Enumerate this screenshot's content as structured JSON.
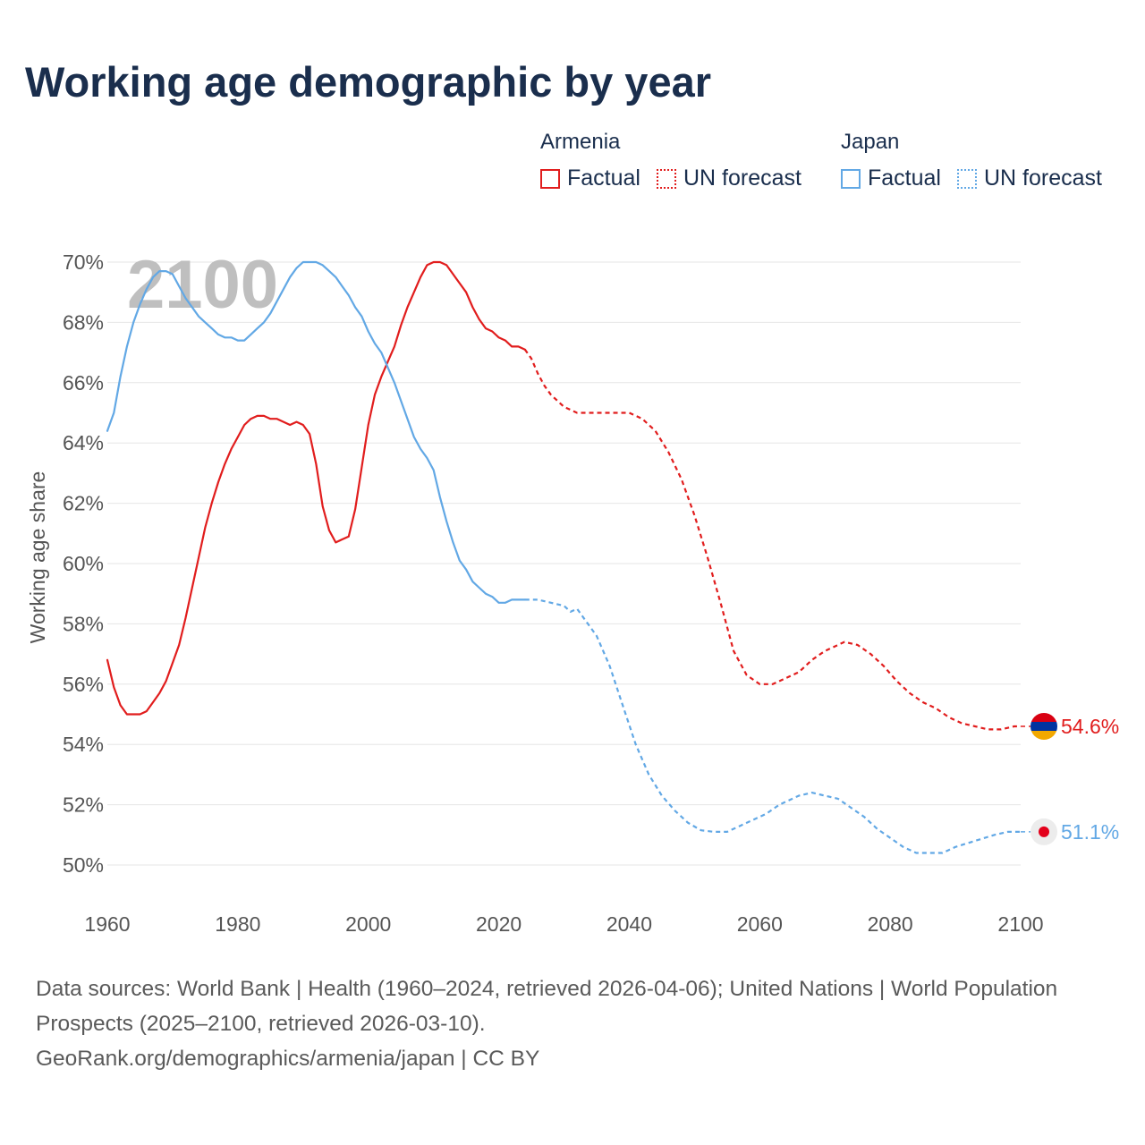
{
  "title": "Working age demographic by year",
  "legend": {
    "groups": [
      {
        "country": "Armenia",
        "factual_label": "Factual",
        "forecast_label": "UN forecast"
      },
      {
        "country": "Japan",
        "factual_label": "Factual",
        "forecast_label": "UN forecast"
      }
    ]
  },
  "footer": {
    "sources": "Data sources: World Bank | Health (1960–2024, retrieved 2026-04-06); United Nations | World Population Prospects (2025–2100, retrieved 2026-03-10).",
    "link": "GeoRank.org/demographics/armenia/japan | CC BY"
  },
  "chart_data": {
    "type": "line",
    "title": "Working age demographic by year",
    "xlabel": "",
    "ylabel": "Working age share",
    "xlim": [
      1960,
      2100
    ],
    "ylim": [
      49,
      70.5
    ],
    "x_ticks": [
      1960,
      1980,
      2000,
      2020,
      2040,
      2060,
      2080,
      2100
    ],
    "y_ticks": [
      50,
      52,
      54,
      56,
      58,
      60,
      62,
      64,
      66,
      68,
      70
    ],
    "y_tick_labels": [
      "50%",
      "52%",
      "54%",
      "56%",
      "58%",
      "60%",
      "62%",
      "64%",
      "66%",
      "68%",
      "70%"
    ],
    "year_watermark": "2100",
    "grid": true,
    "series": [
      {
        "name": "Armenia",
        "color": "#e11d1d",
        "flag": "armenia-flag",
        "end_label": "54.6%",
        "factual": {
          "x": [
            1960,
            1961,
            1962,
            1963,
            1964,
            1965,
            1966,
            1967,
            1968,
            1969,
            1970,
            1971,
            1972,
            1973,
            1974,
            1975,
            1976,
            1977,
            1978,
            1979,
            1980,
            1981,
            1982,
            1983,
            1984,
            1985,
            1986,
            1987,
            1988,
            1989,
            1990,
            1991,
            1992,
            1993,
            1994,
            1995,
            1996,
            1997,
            1998,
            1999,
            2000,
            2001,
            2002,
            2003,
            2004,
            2005,
            2006,
            2007,
            2008,
            2009,
            2010,
            2011,
            2012,
            2013,
            2014,
            2015,
            2016,
            2017,
            2018,
            2019,
            2020,
            2021,
            2022,
            2023,
            2024
          ],
          "y": [
            56.8,
            55.9,
            55.3,
            55.0,
            55.0,
            55.0,
            55.1,
            55.4,
            55.7,
            56.1,
            56.7,
            57.3,
            58.2,
            59.2,
            60.2,
            61.2,
            62.0,
            62.7,
            63.3,
            63.8,
            64.2,
            64.6,
            64.8,
            64.9,
            64.9,
            64.8,
            64.8,
            64.7,
            64.6,
            64.7,
            64.6,
            64.3,
            63.3,
            61.9,
            61.1,
            60.7,
            60.8,
            60.9,
            61.8,
            63.2,
            64.6,
            65.6,
            66.2,
            66.7,
            67.2,
            67.9,
            68.5,
            69.0,
            69.5,
            69.9,
            70.0,
            70.0,
            69.9,
            69.6,
            69.3,
            69.0,
            68.5,
            68.1,
            67.8,
            67.7,
            67.5,
            67.4,
            67.2,
            67.2,
            67.1
          ]
        },
        "forecast": {
          "x": [
            2024,
            2025,
            2026,
            2027,
            2028,
            2030,
            2032,
            2035,
            2038,
            2040,
            2042,
            2044,
            2046,
            2048,
            2050,
            2052,
            2054,
            2056,
            2058,
            2060,
            2062,
            2064,
            2066,
            2068,
            2070,
            2073,
            2075,
            2077,
            2079,
            2081,
            2083,
            2085,
            2087,
            2089,
            2091,
            2093,
            2095,
            2097,
            2099,
            2100
          ],
          "y": [
            67.1,
            66.8,
            66.3,
            65.9,
            65.6,
            65.2,
            65.0,
            65.0,
            65.0,
            65.0,
            64.8,
            64.4,
            63.7,
            62.8,
            61.6,
            60.2,
            58.7,
            57.1,
            56.3,
            56.0,
            56.0,
            56.2,
            56.4,
            56.8,
            57.1,
            57.4,
            57.3,
            57.0,
            56.6,
            56.1,
            55.7,
            55.4,
            55.2,
            54.9,
            54.7,
            54.6,
            54.5,
            54.5,
            54.6,
            54.6
          ]
        }
      },
      {
        "name": "Japan",
        "color": "#62a8e5",
        "flag": "japan-flag",
        "end_label": "51.1%",
        "factual": {
          "x": [
            1960,
            1961,
            1962,
            1963,
            1964,
            1965,
            1966,
            1967,
            1968,
            1969,
            1970,
            1971,
            1972,
            1973,
            1974,
            1975,
            1976,
            1977,
            1978,
            1979,
            1980,
            1981,
            1982,
            1983,
            1984,
            1985,
            1986,
            1987,
            1988,
            1989,
            1990,
            1991,
            1992,
            1993,
            1994,
            1995,
            1996,
            1997,
            1998,
            1999,
            2000,
            2001,
            2002,
            2003,
            2004,
            2005,
            2006,
            2007,
            2008,
            2009,
            2010,
            2011,
            2012,
            2013,
            2014,
            2015,
            2016,
            2017,
            2018,
            2019,
            2020,
            2021,
            2022,
            2023,
            2024
          ],
          "y": [
            64.4,
            65.0,
            66.2,
            67.2,
            68.0,
            68.6,
            69.1,
            69.5,
            69.7,
            69.7,
            69.6,
            69.2,
            68.8,
            68.5,
            68.2,
            68.0,
            67.8,
            67.6,
            67.5,
            67.5,
            67.4,
            67.4,
            67.6,
            67.8,
            68.0,
            68.3,
            68.7,
            69.1,
            69.5,
            69.8,
            70.0,
            70.0,
            70.0,
            69.9,
            69.7,
            69.5,
            69.2,
            68.9,
            68.5,
            68.2,
            67.7,
            67.3,
            67.0,
            66.5,
            66.0,
            65.4,
            64.8,
            64.2,
            63.8,
            63.5,
            63.1,
            62.2,
            61.4,
            60.7,
            60.1,
            59.8,
            59.4,
            59.2,
            59.0,
            58.9,
            58.7,
            58.7,
            58.8,
            58.8,
            58.8
          ]
        },
        "forecast": {
          "x": [
            2024,
            2026,
            2028,
            2030,
            2031,
            2032,
            2033,
            2035,
            2037,
            2039,
            2041,
            2043,
            2045,
            2047,
            2049,
            2051,
            2053,
            2055,
            2057,
            2059,
            2061,
            2063,
            2066,
            2068,
            2070,
            2072,
            2074,
            2076,
            2078,
            2080,
            2082,
            2084,
            2086,
            2088,
            2090,
            2093,
            2096,
            2098,
            2100
          ],
          "y": [
            58.8,
            58.8,
            58.7,
            58.6,
            58.4,
            58.5,
            58.2,
            57.6,
            56.6,
            55.3,
            54.0,
            53.0,
            52.3,
            51.8,
            51.4,
            51.15,
            51.1,
            51.1,
            51.3,
            51.5,
            51.7,
            52.0,
            52.3,
            52.4,
            52.3,
            52.2,
            51.9,
            51.6,
            51.2,
            50.9,
            50.6,
            50.4,
            50.4,
            50.4,
            50.6,
            50.8,
            51.0,
            51.1,
            51.1
          ]
        }
      }
    ]
  }
}
